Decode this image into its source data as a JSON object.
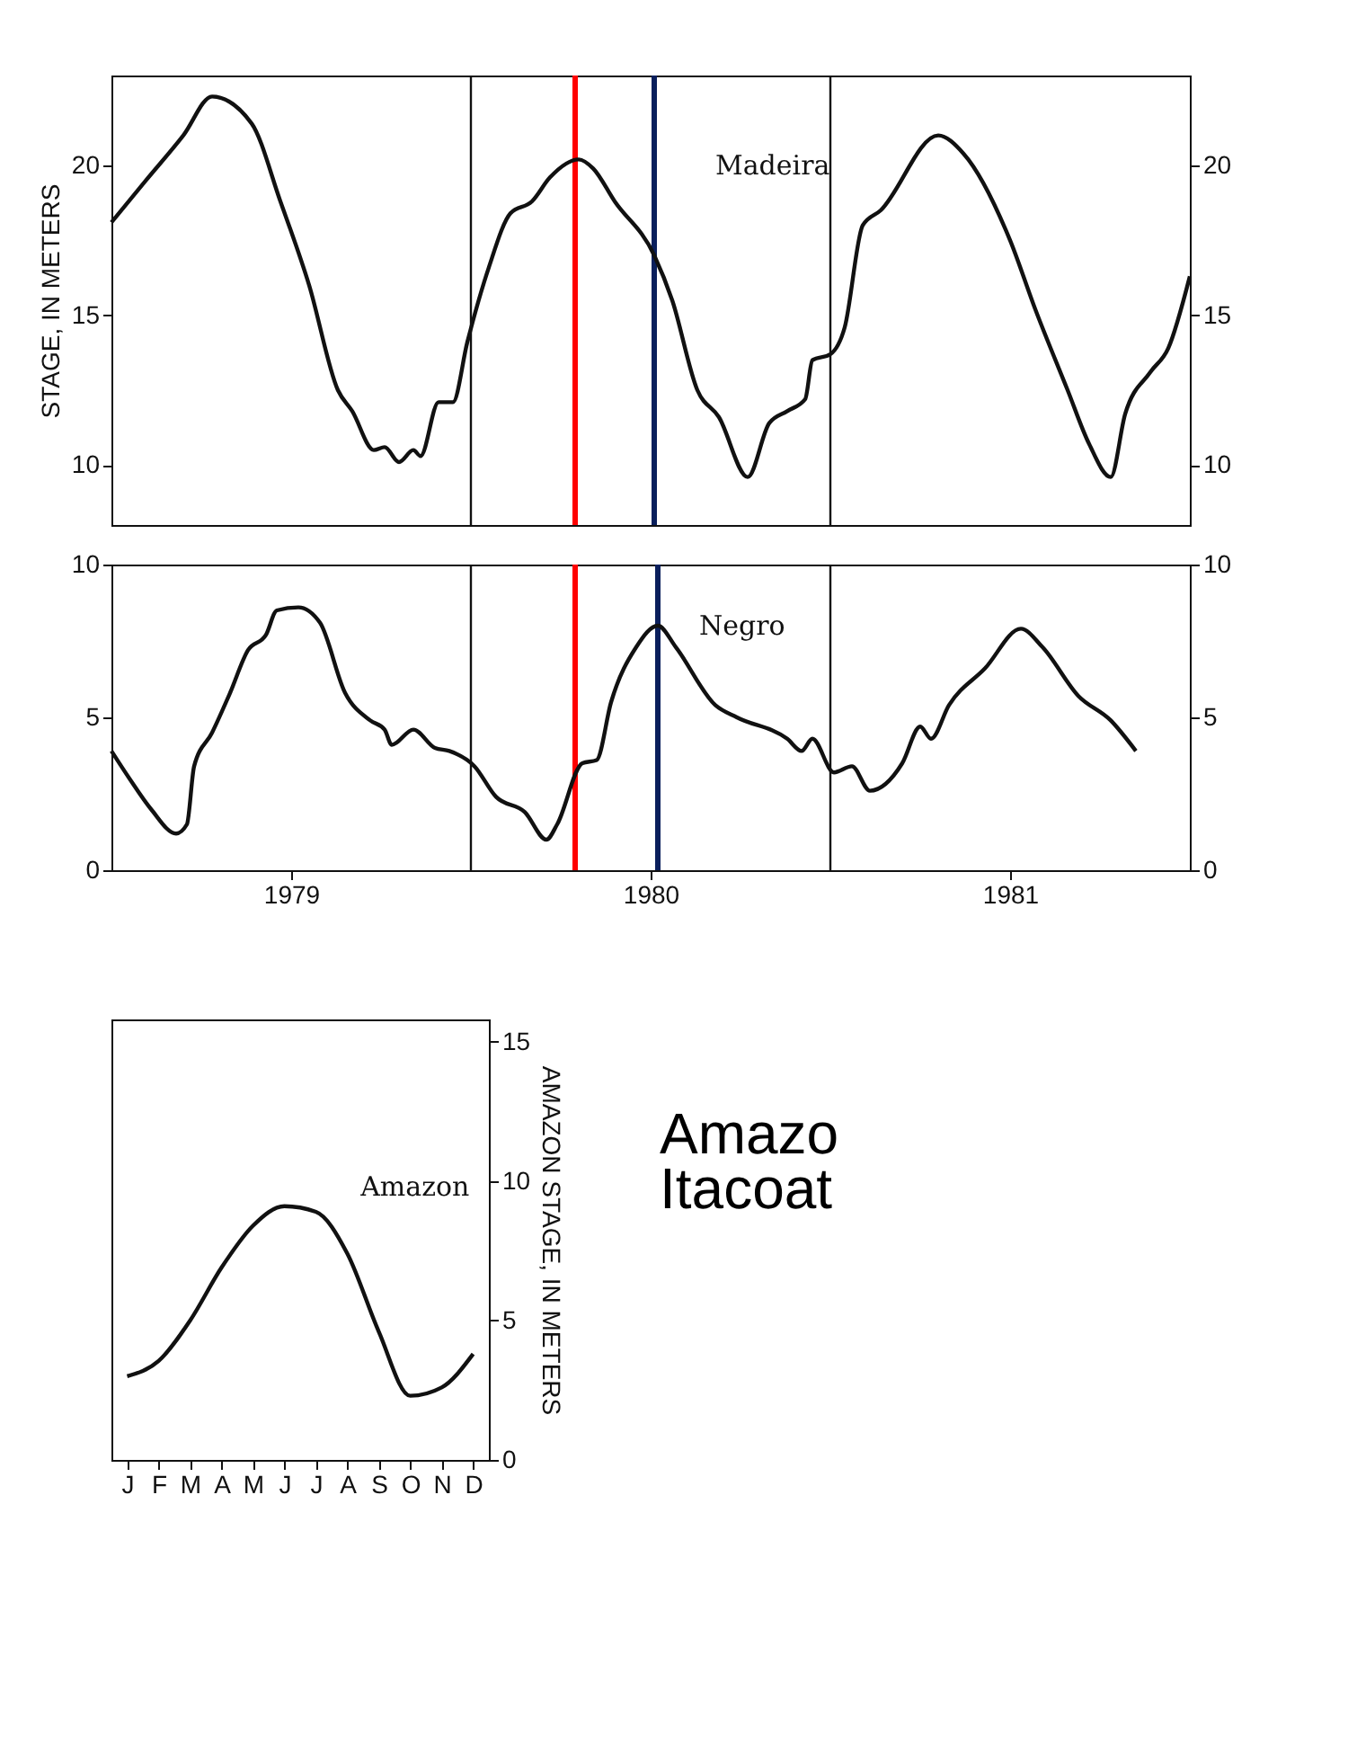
{
  "chart_data": [
    {
      "type": "line",
      "ylabel": "STAGE, IN METERS",
      "xlim": [
        1978.5,
        1981.5
      ],
      "ylim": [
        8,
        23
      ],
      "yticks": [
        10,
        15,
        20
      ],
      "y2lim": [
        8,
        23
      ],
      "y2ticks": [
        10,
        15,
        20
      ],
      "tick_labels": "y",
      "grid": false,
      "x": [
        1978.5,
        1978.596,
        1978.7,
        1978.78,
        1978.89,
        1978.97,
        1979.05,
        1979.13,
        1979.17,
        1979.23,
        1979.26,
        1979.3,
        1979.34,
        1979.36,
        1979.41,
        1979.45,
        1979.49,
        1979.55,
        1979.61,
        1979.67,
        1979.72,
        1979.8,
        1979.84,
        1979.9,
        1980.01,
        1980.06,
        1980.13,
        1980.19,
        1980.27,
        1980.33,
        1980.38,
        1980.43,
        1980.45,
        1980.5,
        1980.54,
        1980.59,
        1980.64,
        1980.8,
        1980.87,
        1981.0,
        1981.07,
        1981.16,
        1981.22,
        1981.28,
        1981.32,
        1981.39,
        1981.44,
        1981.5
      ],
      "series": [
        {
          "name": "Madeira",
          "color": "#111111",
          "values": [
            18.1,
            19.5,
            21.0,
            22.3,
            21.4,
            18.8,
            16.0,
            12.5,
            11.8,
            10.5,
            10.6,
            10.1,
            10.5,
            10.3,
            12.1,
            12.1,
            14.1,
            16.6,
            18.4,
            18.8,
            19.6,
            20.2,
            19.9,
            18.8,
            17.0,
            15.5,
            12.5,
            11.6,
            9.6,
            11.4,
            11.8,
            12.2,
            13.5,
            13.7,
            14.6,
            18.0,
            18.5,
            21.0,
            20.4,
            17.5,
            15.2,
            12.5,
            10.7,
            9.6,
            11.7,
            13.1,
            13.9,
            16.3
          ]
        }
      ],
      "ref_lines": [
        {
          "axis": "x",
          "value": 1979.5,
          "color": "#111111"
        },
        {
          "axis": "x",
          "value": 1980.5,
          "color": "#111111"
        },
        {
          "axis": "x",
          "value": 1979.79,
          "color": "#ff0000"
        },
        {
          "axis": "x",
          "value": 1980.01,
          "color": "#0a1f5c"
        }
      ]
    },
    {
      "type": "line",
      "xlim": [
        1978.5,
        1981.5
      ],
      "xticks": [
        1979,
        1980,
        1981
      ],
      "ylim": [
        0,
        10
      ],
      "yticks": [
        0,
        5,
        10
      ],
      "y2lim": [
        0,
        10
      ],
      "y2ticks": [
        0,
        5,
        10
      ],
      "grid": false,
      "x": [
        1978.5,
        1978.55,
        1978.61,
        1978.68,
        1978.71,
        1978.73,
        1978.78,
        1978.83,
        1978.88,
        1978.93,
        1978.96,
        1979.02,
        1979.08,
        1979.15,
        1979.22,
        1979.26,
        1979.28,
        1979.34,
        1979.4,
        1979.44,
        1979.51,
        1979.57,
        1979.65,
        1979.71,
        1979.74,
        1979.81,
        1979.85,
        1979.89,
        1979.96,
        1980.02,
        1980.07,
        1980.18,
        1980.24,
        1980.38,
        1980.42,
        1980.45,
        1980.51,
        1980.56,
        1980.61,
        1980.7,
        1980.75,
        1980.78,
        1980.83,
        1980.93,
        1981.03,
        1981.09,
        1981.19,
        1981.28,
        1981.35
      ],
      "series": [
        {
          "name": "Negro",
          "color": "#111111",
          "values": [
            3.9,
            3.0,
            2.0,
            1.2,
            1.5,
            3.4,
            4.5,
            5.8,
            7.2,
            7.7,
            8.5,
            8.6,
            8.1,
            5.8,
            4.9,
            4.6,
            4.1,
            4.6,
            4.0,
            3.9,
            3.4,
            2.4,
            1.9,
            1.0,
            1.5,
            3.5,
            3.6,
            5.5,
            7.3,
            8.0,
            7.3,
            5.4,
            5.0,
            4.3,
            3.9,
            4.3,
            3.2,
            3.4,
            2.6,
            3.5,
            4.7,
            4.3,
            5.4,
            6.6,
            7.9,
            7.3,
            5.7,
            4.9,
            3.9
          ]
        }
      ],
      "ref_lines": [
        {
          "axis": "x",
          "value": 1979.5,
          "color": "#111111"
        },
        {
          "axis": "x",
          "value": 1980.5,
          "color": "#111111"
        },
        {
          "axis": "x",
          "value": 1979.79,
          "color": "#ff0000"
        },
        {
          "axis": "x",
          "value": 1980.02,
          "color": "#0a1f5c"
        }
      ]
    },
    {
      "type": "line",
      "y2label": "AMAZON STAGE, IN METERS",
      "categories": [
        "J",
        "F",
        "M",
        "A",
        "M",
        "J",
        "J",
        "A",
        "S",
        "O",
        "N",
        "D"
      ],
      "y2lim": [
        0,
        15.8
      ],
      "y2ticks": [
        0,
        5,
        10,
        15
      ],
      "grid": false,
      "series": [
        {
          "name": "Amazon",
          "color": "#111111",
          "axis": "y2",
          "values": [
            3.0,
            3.55,
            5.0,
            6.9,
            8.4,
            9.1,
            8.9,
            7.4,
            4.6,
            2.3,
            2.6,
            3.8
          ]
        }
      ],
      "annotations": [
        "Amazo",
        "Itacoat"
      ]
    }
  ]
}
